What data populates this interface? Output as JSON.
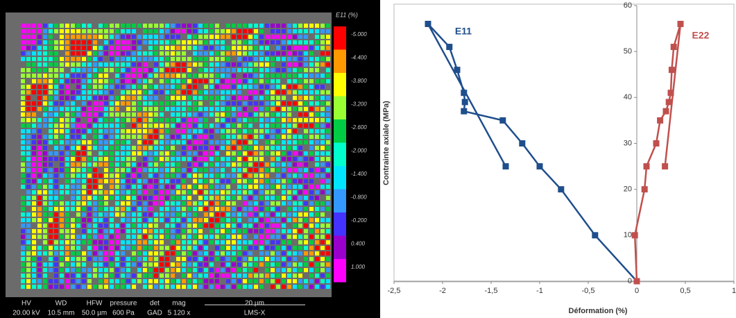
{
  "chart_data": {
    "type": "line",
    "y_label": "Contrainte axiale (MPa)",
    "x_label": "Déformation (%)",
    "xlim": [
      -2.5,
      1
    ],
    "xticks": [
      {
        "value": -2.5,
        "label": "-2,5"
      },
      -2,
      {
        "value": -1.5,
        "label": "-1,5"
      },
      -1,
      {
        "value": -0.5,
        "label": "-0,5"
      },
      0,
      {
        "value": 0.5,
        "label": "0,5"
      },
      1
    ],
    "ylim": [
      0,
      60
    ],
    "yticks": [
      0,
      10,
      20,
      30,
      40,
      50,
      60
    ],
    "series": [
      {
        "name": "E11",
        "color": "#1f4e8c",
        "x": [
          0,
          -0.43,
          -0.78,
          -1,
          -1.18,
          -1.38,
          -1.78,
          -1.77,
          -1.78,
          -1.85,
          -1.93,
          -2.15,
          -1.35
        ],
        "values": [
          0,
          10,
          20,
          25,
          30,
          35,
          37,
          39,
          41,
          46,
          51,
          56,
          25
        ]
      },
      {
        "name": "E22",
        "color": "#c0504d",
        "x": [
          0,
          -0.02,
          0.08,
          0.1,
          0.2,
          0.24,
          0.3,
          0.33,
          0.35,
          0.36,
          0.38,
          0.45,
          0.29
        ],
        "values": [
          0,
          10,
          20,
          25,
          30,
          35,
          37,
          39,
          41,
          46,
          51,
          56,
          25
        ]
      }
    ]
  },
  "image_panel": {
    "colorbar_title": "E11 (%)",
    "colorbar_labels": [
      "-5.000",
      "-4.400",
      "-3.800",
      "-3.200",
      "-2.600",
      "-2.000",
      "-1.400",
      "-0.800",
      "-0.200",
      "0.400",
      "1.000"
    ],
    "footer_headers": [
      "HV",
      "WD",
      "HFW",
      "pressure",
      "det",
      "mag"
    ],
    "footer_values": [
      "20.00 kV",
      "10.5 mm",
      "50.0 µm",
      "600 Pa",
      "GAD",
      "5 120 x"
    ],
    "scale_label": "20 µm",
    "lab": "LMS-X"
  }
}
